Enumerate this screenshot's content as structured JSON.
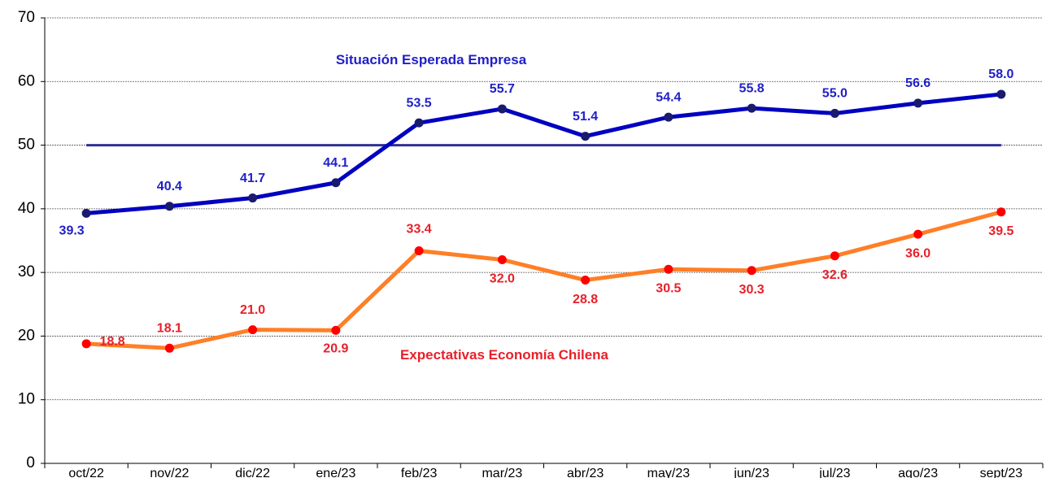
{
  "chart_data": {
    "type": "line",
    "categories": [
      "oct/22",
      "nov/22",
      "dic/22",
      "ene/23",
      "feb/23",
      "mar/23",
      "abr/23",
      "may/23",
      "jun/23",
      "jul/23",
      "ago/23",
      "sept/23"
    ],
    "series": [
      {
        "name": "Situación Esperada Empresa",
        "color": "#0000c0",
        "label_color": "#1f1fc8",
        "values": [
          39.3,
          40.4,
          41.7,
          44.1,
          53.5,
          55.7,
          51.4,
          54.4,
          55.8,
          55.0,
          56.6,
          58.0
        ],
        "value_labels": [
          "39.3",
          "40.4",
          "41.7",
          "44.1",
          "53.5",
          "55.7",
          "51.4",
          "54.4",
          "55.8",
          "55.0",
          "56.6",
          "58.0"
        ]
      },
      {
        "name": "Expectativas Economía Chilena",
        "color": "#ff7f27",
        "label_color": "#e8202a",
        "values": [
          18.8,
          18.1,
          21.0,
          20.9,
          33.4,
          32.0,
          28.8,
          30.5,
          30.3,
          32.6,
          36.0,
          39.5
        ],
        "value_labels": [
          "18.8",
          "18.1",
          "21.0",
          "20.9",
          "33.4",
          "32.0",
          "28.8",
          "30.5",
          "30.3",
          "32.6",
          "36.0",
          "39.5"
        ]
      }
    ],
    "reference_line": {
      "value": 50,
      "color": "#2e3192"
    },
    "ylim": [
      0,
      70
    ],
    "yticks": [
      0,
      10,
      20,
      30,
      40,
      50,
      60,
      70
    ],
    "grid": true
  }
}
